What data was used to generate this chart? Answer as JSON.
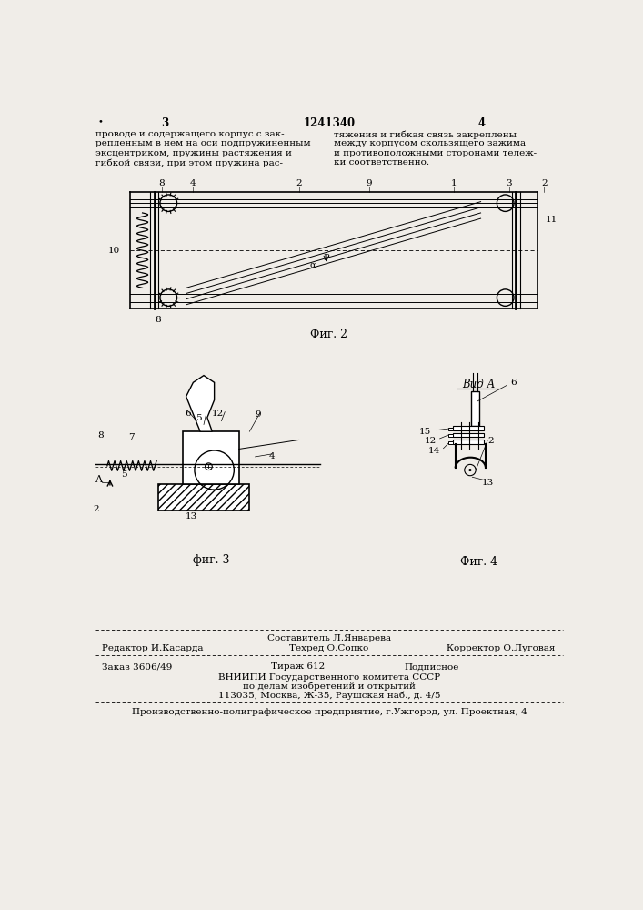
{
  "bg_color": "#f0ede8",
  "page_width": 7.07,
  "page_height": 10.0,
  "header": {
    "dot_left": "•",
    "page_left": "3",
    "patent_num": "1241340",
    "page_right": "4"
  },
  "text_left": "проводе и содержащего корпус с зак-\nрепленным в нем на оси подпружиненным\nэксцентриком, пружины растяжения и\nгибкой связи, при этом пружина рас-",
  "text_right": "тяжения и гибкая связь закреплены\nмежду корпусом скользящего зажима\nи противоположными сторонами тележ-\nки соответственно.",
  "fig2_caption": "Фиг. 2",
  "fig3_caption": "фиг. 3",
  "fig4_caption": "Фиг. 4",
  "vid_a_label": "Вид А",
  "footer_line1_col1": "Редактор И.Касарда",
  "footer_line1_col2_top": "Составитель Л.Январева",
  "footer_line1_col2_bot": "Техред О.Сопко",
  "footer_line1_col3": "Корректор О.Луговая",
  "footer_line2_col1": "Заказ 3606/49",
  "footer_line2_col2": "Тираж 612",
  "footer_line2_col3": "Подписное",
  "footer_line3": "ВНИИПИ Государственного комитета СССР",
  "footer_line4": "по делам изобретений и открытий",
  "footer_line5": "113035, Москва, Ж-35, Раушская наб., д. 4/5",
  "footer_line6": "Производственно-полиграфическое предприятие, г.Ужгород, ул. Проектная, 4"
}
